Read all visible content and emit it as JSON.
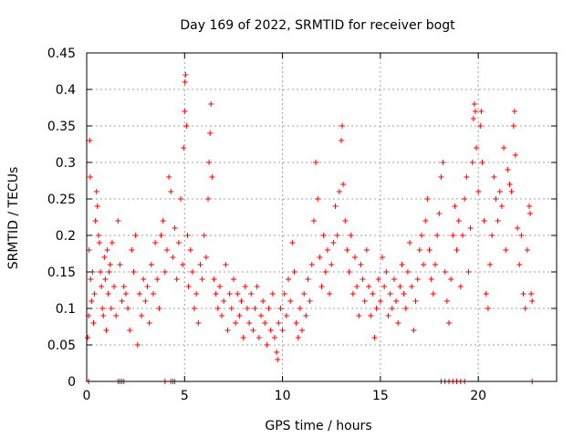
{
  "chart_data": {
    "type": "scatter",
    "title": "Day 169 of 2022, SRMTID for receiver bogt",
    "xlabel": "GPS time / hours",
    "ylabel": "SRMTID / TECUs",
    "xlim": [
      0,
      24
    ],
    "ylim": [
      0,
      0.45
    ],
    "xticks": [
      0,
      5,
      10,
      15,
      20
    ],
    "yticks": [
      0,
      0.05,
      0.1,
      0.15,
      0.2,
      0.25,
      0.3,
      0.35,
      0.4,
      0.45
    ],
    "ytick_labels": [
      "0",
      "0.05",
      "0.1",
      "0.15",
      "0.2",
      "0.25",
      "0.3",
      "0.35",
      "0.4",
      "0.45"
    ],
    "grid": true,
    "marker": "+",
    "series_color": "#ff0000",
    "series": [
      {
        "name": "SRMTID",
        "points": [
          [
            0.05,
            0.06
          ],
          [
            0.1,
            0.09
          ],
          [
            0.12,
            0.18
          ],
          [
            0.15,
            0.33
          ],
          [
            0.18,
            0.28
          ],
          [
            0.2,
            0.14
          ],
          [
            0.25,
            0.11
          ],
          [
            0.3,
            0.15
          ],
          [
            0.35,
            0.08
          ],
          [
            0.4,
            0.12
          ],
          [
            0.45,
            0.22
          ],
          [
            0.5,
            0.26
          ],
          [
            0.55,
            0.24
          ],
          [
            0.6,
            0.2
          ],
          [
            0.65,
            0.19
          ],
          [
            0.7,
            0.15
          ],
          [
            0.75,
            0.13
          ],
          [
            0.8,
            0.1
          ],
          [
            0.85,
            0.09
          ],
          [
            0.9,
            0.17
          ],
          [
            0.95,
            0.14
          ],
          [
            1.0,
            0.07
          ],
          [
            1.05,
            0.18
          ],
          [
            1.1,
            0.12
          ],
          [
            1.15,
            0.15
          ],
          [
            1.2,
            0.16
          ],
          [
            1.25,
            0.1
          ],
          [
            1.3,
            0.19
          ],
          [
            1.4,
            0.13
          ],
          [
            1.5,
            0.09
          ],
          [
            1.6,
            0.22
          ],
          [
            1.7,
            0.16
          ],
          [
            1.8,
            0.11
          ],
          [
            1.9,
            0.13
          ],
          [
            2.0,
            0.12
          ],
          [
            2.1,
            0.1
          ],
          [
            2.2,
            0.07
          ],
          [
            2.3,
            0.18
          ],
          [
            2.4,
            0.15
          ],
          [
            2.5,
            0.2
          ],
          [
            2.6,
            0.05
          ],
          [
            2.7,
            0.12
          ],
          [
            2.8,
            0.09
          ],
          [
            2.9,
            0.14
          ],
          [
            3.0,
            0.11
          ],
          [
            3.1,
            0.13
          ],
          [
            3.2,
            0.08
          ],
          [
            3.3,
            0.16
          ],
          [
            3.4,
            0.12
          ],
          [
            3.5,
            0.19
          ],
          [
            3.6,
            0.14
          ],
          [
            3.7,
            0.1
          ],
          [
            3.8,
            0.2
          ],
          [
            3.9,
            0.22
          ],
          [
            4.0,
            0.15
          ],
          [
            4.1,
            0.18
          ],
          [
            4.2,
            0.28
          ],
          [
            4.3,
            0.26
          ],
          [
            4.4,
            0.17
          ],
          [
            4.5,
            0.21
          ],
          [
            4.6,
            0.14
          ],
          [
            4.7,
            0.19
          ],
          [
            4.8,
            0.25
          ],
          [
            4.9,
            0.16
          ],
          [
            4.95,
            0.32
          ],
          [
            5.0,
            0.37
          ],
          [
            5.02,
            0.41
          ],
          [
            5.05,
            0.42
          ],
          [
            5.1,
            0.35
          ],
          [
            5.15,
            0.2
          ],
          [
            5.2,
            0.13
          ],
          [
            5.3,
            0.18
          ],
          [
            5.4,
            0.15
          ],
          [
            5.5,
            0.1
          ],
          [
            5.6,
            0.12
          ],
          [
            5.7,
            0.08
          ],
          [
            5.8,
            0.16
          ],
          [
            5.9,
            0.14
          ],
          [
            6.0,
            0.2
          ],
          [
            6.1,
            0.17
          ],
          [
            6.2,
            0.25
          ],
          [
            6.25,
            0.3
          ],
          [
            6.3,
            0.34
          ],
          [
            6.35,
            0.38
          ],
          [
            6.4,
            0.28
          ],
          [
            6.5,
            0.14
          ],
          [
            6.6,
            0.12
          ],
          [
            6.7,
            0.1
          ],
          [
            6.8,
            0.13
          ],
          [
            6.9,
            0.09
          ],
          [
            7.0,
            0.11
          ],
          [
            7.1,
            0.16
          ],
          [
            7.2,
            0.07
          ],
          [
            7.3,
            0.12
          ],
          [
            7.4,
            0.1
          ],
          [
            7.5,
            0.14
          ],
          [
            7.6,
            0.08
          ],
          [
            7.7,
            0.12
          ],
          [
            7.8,
            0.09
          ],
          [
            7.9,
            0.11
          ],
          [
            8.0,
            0.06
          ],
          [
            8.1,
            0.13
          ],
          [
            8.2,
            0.1
          ],
          [
            8.3,
            0.08
          ],
          [
            8.4,
            0.12
          ],
          [
            8.5,
            0.07
          ],
          [
            8.6,
            0.1
          ],
          [
            8.7,
            0.13
          ],
          [
            8.8,
            0.06
          ],
          [
            8.9,
            0.09
          ],
          [
            9.0,
            0.11
          ],
          [
            9.1,
            0.08
          ],
          [
            9.2,
            0.05
          ],
          [
            9.3,
            0.1
          ],
          [
            9.4,
            0.07
          ],
          [
            9.5,
            0.12
          ],
          [
            9.6,
            0.06
          ],
          [
            9.7,
            0.04
          ],
          [
            9.75,
            0.03
          ],
          [
            9.8,
            0.08
          ],
          [
            9.9,
            0.1
          ],
          [
            10.0,
            0.07
          ],
          [
            10.1,
            0.12
          ],
          [
            10.2,
            0.09
          ],
          [
            10.3,
            0.14
          ],
          [
            10.4,
            0.11
          ],
          [
            10.5,
            0.19
          ],
          [
            10.6,
            0.15
          ],
          [
            10.7,
            0.08
          ],
          [
            10.8,
            0.06
          ],
          [
            10.9,
            0.1
          ],
          [
            11.0,
            0.07
          ],
          [
            11.1,
            0.12
          ],
          [
            11.2,
            0.09
          ],
          [
            11.3,
            0.14
          ],
          [
            11.4,
            0.11
          ],
          [
            11.5,
            0.16
          ],
          [
            11.6,
            0.22
          ],
          [
            11.7,
            0.3
          ],
          [
            11.8,
            0.25
          ],
          [
            11.9,
            0.17
          ],
          [
            12.0,
            0.13
          ],
          [
            12.1,
            0.2
          ],
          [
            12.2,
            0.15
          ],
          [
            12.3,
            0.18
          ],
          [
            12.4,
            0.12
          ],
          [
            12.5,
            0.16
          ],
          [
            12.6,
            0.19
          ],
          [
            12.7,
            0.24
          ],
          [
            12.8,
            0.2
          ],
          [
            12.9,
            0.26
          ],
          [
            13.0,
            0.33
          ],
          [
            13.05,
            0.35
          ],
          [
            13.1,
            0.27
          ],
          [
            13.2,
            0.22
          ],
          [
            13.3,
            0.18
          ],
          [
            13.4,
            0.15
          ],
          [
            13.5,
            0.2
          ],
          [
            13.6,
            0.12
          ],
          [
            13.7,
            0.17
          ],
          [
            13.8,
            0.13
          ],
          [
            13.9,
            0.09
          ],
          [
            14.0,
            0.16
          ],
          [
            14.1,
            0.14
          ],
          [
            14.2,
            0.11
          ],
          [
            14.3,
            0.18
          ],
          [
            14.4,
            0.13
          ],
          [
            14.5,
            0.09
          ],
          [
            14.6,
            0.12
          ],
          [
            14.7,
            0.06
          ],
          [
            14.8,
            0.1
          ],
          [
            14.9,
            0.14
          ],
          [
            15.0,
            0.11
          ],
          [
            15.1,
            0.17
          ],
          [
            15.2,
            0.13
          ],
          [
            15.3,
            0.15
          ],
          [
            15.4,
            0.09
          ],
          [
            15.5,
            0.12
          ],
          [
            15.6,
            0.1
          ],
          [
            15.7,
            0.14
          ],
          [
            15.8,
            0.11
          ],
          [
            15.9,
            0.08
          ],
          [
            16.0,
            0.13
          ],
          [
            16.1,
            0.16
          ],
          [
            16.2,
            0.12
          ],
          [
            16.3,
            0.1
          ],
          [
            16.4,
            0.15
          ],
          [
            16.5,
            0.19
          ],
          [
            16.6,
            0.13
          ],
          [
            16.7,
            0.07
          ],
          [
            16.8,
            0.11
          ],
          [
            16.9,
            0.14
          ],
          [
            17.0,
            0.18
          ],
          [
            17.1,
            0.2
          ],
          [
            17.2,
            0.16
          ],
          [
            17.3,
            0.22
          ],
          [
            17.4,
            0.25
          ],
          [
            17.5,
            0.18
          ],
          [
            17.6,
            0.14
          ],
          [
            17.7,
            0.12
          ],
          [
            17.8,
            0.16
          ],
          [
            17.9,
            0.2
          ],
          [
            18.0,
            0.23
          ],
          [
            18.1,
            0.28
          ],
          [
            18.2,
            0.3
          ],
          [
            18.3,
            0.15
          ],
          [
            18.4,
            0.11
          ],
          [
            18.5,
            0.08
          ],
          [
            18.6,
            0.14
          ],
          [
            18.7,
            0.2
          ],
          [
            18.8,
            0.24
          ],
          [
            18.9,
            0.18
          ],
          [
            19.0,
            0.22
          ],
          [
            19.1,
            0.13
          ],
          [
            19.2,
            0.2
          ],
          [
            19.3,
            0.25
          ],
          [
            19.4,
            0.28
          ],
          [
            19.5,
            0.15
          ],
          [
            19.6,
            0.21
          ],
          [
            19.7,
            0.3
          ],
          [
            19.75,
            0.36
          ],
          [
            19.8,
            0.38
          ],
          [
            19.85,
            0.37
          ],
          [
            19.9,
            0.32
          ],
          [
            20.0,
            0.26
          ],
          [
            20.1,
            0.35
          ],
          [
            20.15,
            0.37
          ],
          [
            20.2,
            0.3
          ],
          [
            20.3,
            0.22
          ],
          [
            20.4,
            0.12
          ],
          [
            20.5,
            0.1
          ],
          [
            20.6,
            0.16
          ],
          [
            20.7,
            0.2
          ],
          [
            20.8,
            0.28
          ],
          [
            20.9,
            0.25
          ],
          [
            21.0,
            0.22
          ],
          [
            21.1,
            0.26
          ],
          [
            21.2,
            0.24
          ],
          [
            21.3,
            0.32
          ],
          [
            21.4,
            0.18
          ],
          [
            21.5,
            0.29
          ],
          [
            21.6,
            0.27
          ],
          [
            21.7,
            0.26
          ],
          [
            21.8,
            0.35
          ],
          [
            21.85,
            0.37
          ],
          [
            21.9,
            0.31
          ],
          [
            22.0,
            0.21
          ],
          [
            22.1,
            0.16
          ],
          [
            22.2,
            0.2
          ],
          [
            22.3,
            0.12
          ],
          [
            22.4,
            0.1
          ],
          [
            22.5,
            0.18
          ],
          [
            22.6,
            0.24
          ],
          [
            22.65,
            0.23
          ],
          [
            22.7,
            0.12
          ],
          [
            22.75,
            0.11
          ],
          [
            0.1,
            0.0
          ],
          [
            1.6,
            0.0
          ],
          [
            1.7,
            0.0
          ],
          [
            1.8,
            0.0
          ],
          [
            1.9,
            0.0
          ],
          [
            4.0,
            0.0
          ],
          [
            4.3,
            0.0
          ],
          [
            4.4,
            0.0
          ],
          [
            4.5,
            0.0
          ],
          [
            18.1,
            0.0
          ],
          [
            18.3,
            0.0
          ],
          [
            18.5,
            0.0
          ],
          [
            18.7,
            0.0
          ],
          [
            18.9,
            0.0
          ],
          [
            19.1,
            0.0
          ],
          [
            19.3,
            0.0
          ],
          [
            22.75,
            0.0
          ]
        ]
      }
    ]
  }
}
